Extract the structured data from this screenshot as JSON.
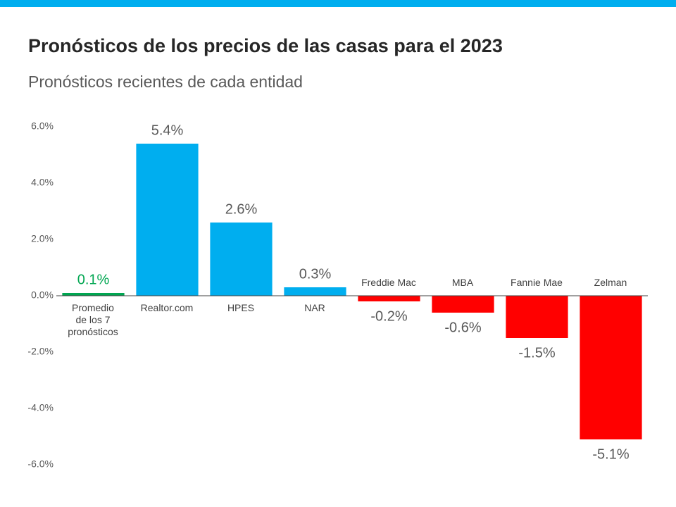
{
  "chart_data": {
    "type": "bar",
    "title": "Pronósticos de los precios de las casas para el 2023",
    "subtitle": "Pronósticos recientes de cada entidad",
    "categories": [
      "Promedio\nde los 7\npronósticos",
      "Realtor.com",
      "HPES",
      "NAR",
      "Freddie Mac",
      "MBA",
      "Fannie Mae",
      "Zelman"
    ],
    "values": [
      0.1,
      5.4,
      2.6,
      0.3,
      -0.2,
      -0.6,
      -1.5,
      -5.1
    ],
    "value_labels": [
      "0.1%",
      "5.4%",
      "2.6%",
      "0.3%",
      "-0.2%",
      "-0.6%",
      "-1.5%",
      "-5.1%"
    ],
    "colors": [
      "#00a651",
      "#00aeef",
      "#00aeef",
      "#00aeef",
      "#ff0000",
      "#ff0000",
      "#ff0000",
      "#ff0000"
    ],
    "value_label_colors": [
      "#00a651",
      "#595959",
      "#595959",
      "#595959",
      "#595959",
      "#595959",
      "#595959",
      "#595959"
    ],
    "ylim": [
      -6,
      6
    ],
    "yticks": [
      {
        "value": -6,
        "label": "-6.0%"
      },
      {
        "value": -4,
        "label": "-4.0%"
      },
      {
        "value": -2,
        "label": "-2.0%"
      },
      {
        "value": 0,
        "label": "0.0%"
      },
      {
        "value": 2,
        "label": "2.0%"
      },
      {
        "value": 4,
        "label": "4.0%"
      },
      {
        "value": 6,
        "label": "6.0%"
      }
    ],
    "grid": false
  }
}
